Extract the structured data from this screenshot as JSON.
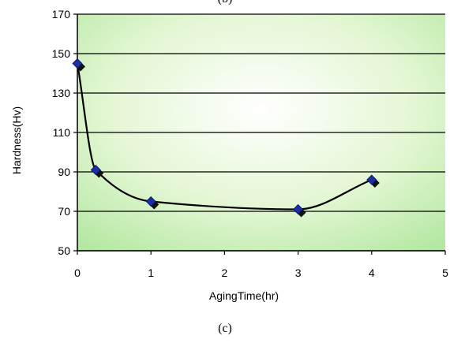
{
  "top_caption": "(b)",
  "bottom_caption": "(c)",
  "chart_data": {
    "type": "scatter",
    "xlabel": "AgingTime(hr)",
    "ylabel": "Hardness(Hv)",
    "xlim": [
      0,
      5
    ],
    "ylim": [
      50,
      170
    ],
    "x_ticks": [
      0,
      1,
      2,
      3,
      4,
      5
    ],
    "y_ticks": [
      50,
      70,
      90,
      110,
      130,
      150,
      170
    ],
    "grid": "horizontal",
    "series": [
      {
        "marker": "diamond",
        "color": "#1c2fa0",
        "x": [
          0,
          0.25,
          1,
          3,
          4
        ],
        "y": [
          145,
          91,
          75,
          71,
          86
        ]
      }
    ],
    "trendline": "smoothed",
    "background": "radial gradient white center to light green"
  }
}
